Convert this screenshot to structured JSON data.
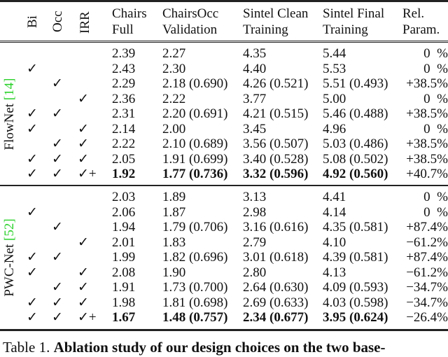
{
  "header": {
    "bi": "Bi",
    "occ": "Occ",
    "irr": "IRR",
    "chairs": [
      "Chairs",
      "Full"
    ],
    "chairsocc": [
      "ChairsOcc",
      "Validation"
    ],
    "clean": [
      "Sintel Clean",
      "Training"
    ],
    "final": [
      "Sintel Final",
      "Training"
    ],
    "rel": [
      "Rel.",
      "Param."
    ]
  },
  "groups": [
    {
      "name": "FlowNet",
      "cite": "[14]",
      "rows": [
        {
          "bi": "",
          "occ": "",
          "irr": "",
          "chairs": "2.39",
          "chairsocc": "2.27",
          "clean": "4.35",
          "final": "5.44",
          "rel": "0  %",
          "bold": false
        },
        {
          "bi": "✓",
          "occ": "",
          "irr": "",
          "chairs": "2.43",
          "chairsocc": "2.30",
          "clean": "4.40",
          "final": "5.53",
          "rel": "0  %",
          "bold": false
        },
        {
          "bi": "",
          "occ": "✓",
          "irr": "",
          "chairs": "2.29",
          "chairsocc": "2.18 (0.690)",
          "clean": "4.26 (0.521)",
          "final": "5.51 (0.493)",
          "rel": "+38.5%",
          "bold": false
        },
        {
          "bi": "",
          "occ": "",
          "irr": "✓",
          "chairs": "2.36",
          "chairsocc": "2.22",
          "clean": "3.77",
          "final": "5.00",
          "rel": "0  %",
          "bold": false
        },
        {
          "bi": "✓",
          "occ": "✓",
          "irr": "",
          "chairs": "2.31",
          "chairsocc": "2.20 (0.691)",
          "clean": "4.21 (0.515)",
          "final": "5.46 (0.488)",
          "rel": "+38.5%",
          "bold": false
        },
        {
          "bi": "✓",
          "occ": "",
          "irr": "✓",
          "chairs": "2.14",
          "chairsocc": "2.00",
          "clean": "3.45",
          "final": "4.96",
          "rel": "0  %",
          "bold": false
        },
        {
          "bi": "",
          "occ": "✓",
          "irr": "✓",
          "chairs": "2.22",
          "chairsocc": "2.10 (0.689)",
          "clean": "3.56 (0.507)",
          "final": "5.03 (0.486)",
          "rel": "+38.5%",
          "bold": false
        },
        {
          "bi": "✓",
          "occ": "✓",
          "irr": "✓",
          "chairs": "2.05",
          "chairsocc": "1.91 (0.699)",
          "clean": "3.40 (0.528)",
          "final": "5.08 (0.502)",
          "rel": "+38.5%",
          "bold": false
        },
        {
          "bi": "✓",
          "occ": "✓",
          "irr": "✓+",
          "chairs": "1.92",
          "chairsocc": "1.77 (0.736)",
          "clean": "3.32 (0.596)",
          "final": "4.92 (0.560)",
          "rel": "+40.7%",
          "bold": true
        }
      ]
    },
    {
      "name": "PWC-Net",
      "cite": "[52]",
      "rows": [
        {
          "bi": "",
          "occ": "",
          "irr": "",
          "chairs": "2.03",
          "chairsocc": "1.89",
          "clean": "3.13",
          "final": "4.41",
          "rel": "0  %",
          "bold": false
        },
        {
          "bi": "✓",
          "occ": "",
          "irr": "",
          "chairs": "2.06",
          "chairsocc": "1.87",
          "clean": "2.98",
          "final": "4.14",
          "rel": "0  %",
          "bold": false
        },
        {
          "bi": "",
          "occ": "✓",
          "irr": "",
          "chairs": "1.94",
          "chairsocc": "1.79 (0.706)",
          "clean": "3.16 (0.616)",
          "final": "4.35 (0.581)",
          "rel": "+87.4%",
          "bold": false
        },
        {
          "bi": "",
          "occ": "",
          "irr": "✓",
          "chairs": "2.01",
          "chairsocc": "1.83",
          "clean": "2.79",
          "final": "4.10",
          "rel": "−61.2%",
          "bold": false
        },
        {
          "bi": "✓",
          "occ": "✓",
          "irr": "",
          "chairs": "1.99",
          "chairsocc": "1.82 (0.696)",
          "clean": "3.01 (0.618)",
          "final": "4.39 (0.581)",
          "rel": "+87.4%",
          "bold": false
        },
        {
          "bi": "✓",
          "occ": "",
          "irr": "✓",
          "chairs": "2.08",
          "chairsocc": "1.90",
          "clean": "2.80",
          "final": "4.13",
          "rel": "−61.2%",
          "bold": false
        },
        {
          "bi": "",
          "occ": "✓",
          "irr": "✓",
          "chairs": "1.91",
          "chairsocc": "1.73 (0.700)",
          "clean": "2.64 (0.630)",
          "final": "4.09 (0.593)",
          "rel": "−34.7%",
          "bold": false
        },
        {
          "bi": "✓",
          "occ": "✓",
          "irr": "✓",
          "chairs": "1.98",
          "chairsocc": "1.81 (0.698)",
          "clean": "2.69 (0.633)",
          "final": "4.03 (0.598)",
          "rel": "−34.7%",
          "bold": false
        },
        {
          "bi": "✓",
          "occ": "✓",
          "irr": "✓+",
          "chairs": "1.67",
          "chairsocc": "1.48 (0.757)",
          "clean": "2.34 (0.677)",
          "final": "3.95 (0.624)",
          "rel": "−26.4%",
          "bold": true
        }
      ]
    }
  ],
  "caption": {
    "label": "Table 1. ",
    "text": "Ablation study of our design choices on the two base-"
  },
  "colors": {
    "cite": "#2bd12b"
  }
}
